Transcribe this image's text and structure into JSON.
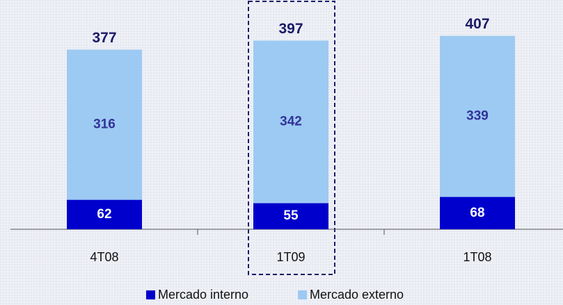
{
  "chart_data": {
    "type": "stacked_bar",
    "categories": [
      "4T08",
      "1T09",
      "1T08"
    ],
    "series": [
      {
        "name": "Mercado interno",
        "color": "#0000cc",
        "values": [
          62,
          55,
          68
        ]
      },
      {
        "name": "Mercado externo",
        "color": "#9dcaf3",
        "values": [
          316,
          342,
          339
        ]
      }
    ],
    "totals": [
      377,
      397,
      407
    ]
  }
}
